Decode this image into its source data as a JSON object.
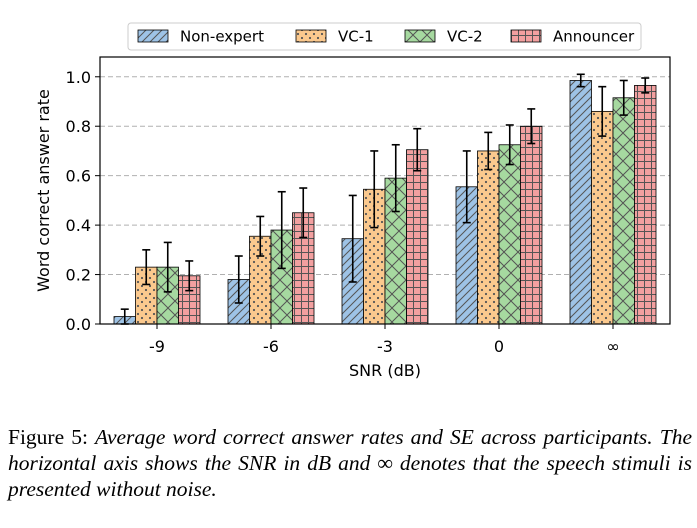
{
  "chart_data": {
    "type": "bar",
    "xlabel": "SNR (dB)",
    "ylabel": "Word correct answer rate",
    "categories": [
      "-9",
      "-6",
      "-3",
      "0",
      "∞"
    ],
    "ylim": [
      0,
      1.08
    ],
    "yticks": [
      "0.0",
      "0.2",
      "0.4",
      "0.6",
      "0.8",
      "1.0"
    ],
    "grid": "horizontal dashed",
    "legend_position": "top",
    "error_bars": "SE",
    "series": [
      {
        "name": "Non-expert",
        "color": "#9ec3e6",
        "pattern": "diagonal",
        "values": [
          0.03,
          0.18,
          0.345,
          0.555,
          0.985
        ],
        "errors": [
          0.03,
          0.095,
          0.175,
          0.145,
          0.025
        ]
      },
      {
        "name": "VC-1",
        "color": "#fbc98e",
        "pattern": "dots",
        "values": [
          0.23,
          0.355,
          0.545,
          0.7,
          0.86
        ],
        "errors": [
          0.07,
          0.08,
          0.155,
          0.075,
          0.1
        ]
      },
      {
        "name": "VC-2",
        "color": "#a6d9a0",
        "pattern": "crosshatch-x",
        "values": [
          0.23,
          0.38,
          0.59,
          0.725,
          0.915
        ],
        "errors": [
          0.1,
          0.155,
          0.135,
          0.08,
          0.07
        ]
      },
      {
        "name": "Announcer",
        "color": "#f2a0a0",
        "pattern": "grid",
        "values": [
          0.195,
          0.45,
          0.705,
          0.8,
          0.965
        ],
        "errors": [
          0.06,
          0.1,
          0.085,
          0.07,
          0.03
        ]
      }
    ]
  },
  "caption": {
    "label": "Figure 5:",
    "text": "Average word correct answer rates and SE across participants. The horizontal axis shows the SNR in dB and ∞ denotes that the speech stimuli is presented without noise."
  }
}
